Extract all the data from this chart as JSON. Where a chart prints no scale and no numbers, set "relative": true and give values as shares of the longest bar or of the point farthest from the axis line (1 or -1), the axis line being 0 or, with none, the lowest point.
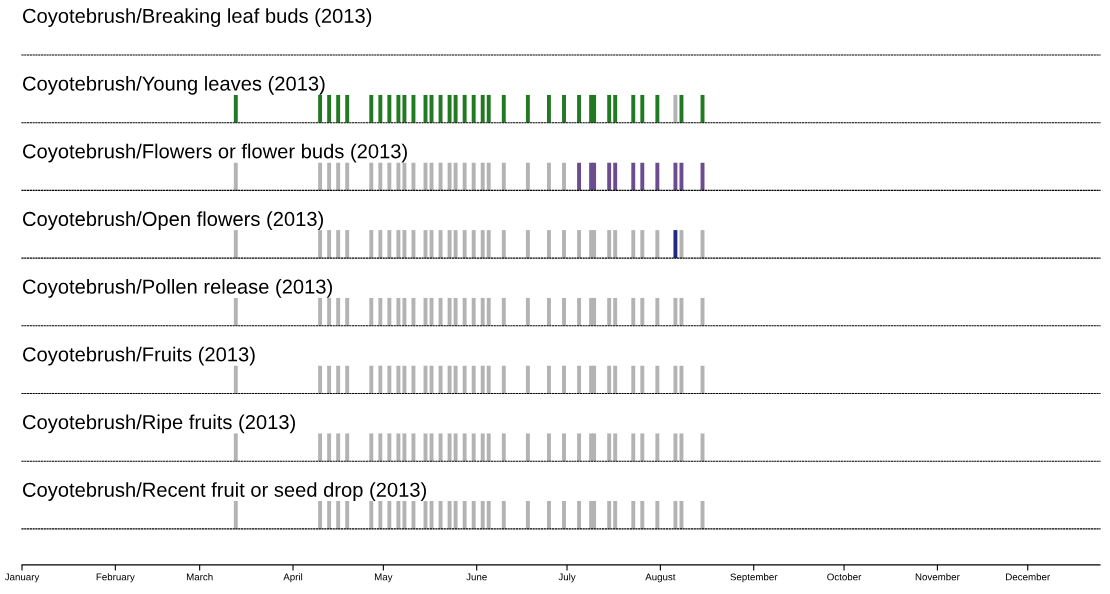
{
  "chart_data": [
    {
      "type": "other",
      "title": "Coyotebrush/Breaking leaf buds (2013)"
    },
    {
      "type": "bar",
      "relative": true,
      "title": "Coyotebrush/Young leaves (2013)",
      "xlim": [
        "2013-01-01",
        "2013-12-25"
      ],
      "tick_labels": false,
      "series": [
        {
          "color": "#217a21",
          "x": [
            "2013-03-13",
            "2013-04-10",
            "2013-04-13",
            "2013-04-16",
            "2013-04-19",
            "2013-04-27",
            "2013-04-30",
            "2013-05-03",
            "2013-05-06",
            "2013-05-08",
            "2013-05-11",
            "2013-05-15",
            "2013-05-17",
            "2013-05-20",
            "2013-05-23",
            "2013-05-25",
            "2013-05-28",
            "2013-05-31",
            "2013-06-03",
            "2013-06-05",
            "2013-06-10",
            "2013-06-18",
            "2013-06-25",
            "2013-06-30",
            "2013-07-05",
            "2013-07-09",
            "2013-07-10",
            "2013-07-15",
            "2013-07-17",
            "2013-07-23",
            "2013-07-26",
            "2013-07-31",
            "2013-08-08",
            "2013-08-15"
          ],
          "values": [
            1,
            1,
            1,
            1,
            1,
            1,
            1,
            1,
            1,
            1,
            1,
            1,
            1,
            1,
            1,
            1,
            1,
            1,
            1,
            1,
            1,
            1,
            1,
            1,
            1,
            1,
            1,
            1,
            1,
            1,
            1,
            1,
            1,
            1
          ]
        },
        {
          "color": "#b3b3b3",
          "x": [
            "2013-08-06"
          ],
          "values": [
            1
          ]
        }
      ]
    },
    {
      "type": "bar",
      "relative": true,
      "title": "Coyotebrush/Flowers or flower buds (2013)",
      "xlim": [
        "2013-01-01",
        "2013-12-25"
      ],
      "tick_labels": false,
      "series": [
        {
          "color": "#b3b3b3",
          "x": [
            "2013-03-13",
            "2013-04-10",
            "2013-04-13",
            "2013-04-16",
            "2013-04-19",
            "2013-04-27",
            "2013-04-30",
            "2013-05-03",
            "2013-05-06",
            "2013-05-08",
            "2013-05-11",
            "2013-05-15",
            "2013-05-17",
            "2013-05-20",
            "2013-05-23",
            "2013-05-25",
            "2013-05-28",
            "2013-05-31",
            "2013-06-03",
            "2013-06-05",
            "2013-06-10",
            "2013-06-18",
            "2013-06-25",
            "2013-06-30"
          ],
          "values": [
            1,
            1,
            1,
            1,
            1,
            1,
            1,
            1,
            1,
            1,
            1,
            1,
            1,
            1,
            1,
            1,
            1,
            1,
            1,
            1,
            1,
            1,
            1,
            1
          ]
        },
        {
          "color": "#6b4c8e",
          "x": [
            "2013-07-05",
            "2013-07-09",
            "2013-07-10",
            "2013-07-15",
            "2013-07-17",
            "2013-07-23",
            "2013-07-26",
            "2013-07-31",
            "2013-08-06",
            "2013-08-08",
            "2013-08-15"
          ],
          "values": [
            1,
            1,
            1,
            1,
            1,
            1,
            1,
            1,
            1,
            1,
            1
          ]
        }
      ]
    },
    {
      "type": "bar",
      "relative": true,
      "title": "Coyotebrush/Open flowers (2013)",
      "xlim": [
        "2013-01-01",
        "2013-12-25"
      ],
      "tick_labels": false,
      "series": [
        {
          "color": "#b3b3b3",
          "x": [
            "2013-03-13",
            "2013-04-10",
            "2013-04-13",
            "2013-04-16",
            "2013-04-19",
            "2013-04-27",
            "2013-04-30",
            "2013-05-03",
            "2013-05-06",
            "2013-05-08",
            "2013-05-11",
            "2013-05-15",
            "2013-05-17",
            "2013-05-20",
            "2013-05-23",
            "2013-05-25",
            "2013-05-28",
            "2013-05-31",
            "2013-06-03",
            "2013-06-05",
            "2013-06-10",
            "2013-06-18",
            "2013-06-25",
            "2013-06-30",
            "2013-07-05",
            "2013-07-09",
            "2013-07-10",
            "2013-07-15",
            "2013-07-17",
            "2013-07-23",
            "2013-07-26",
            "2013-07-31",
            "2013-08-08",
            "2013-08-15"
          ],
          "values": [
            1,
            1,
            1,
            1,
            1,
            1,
            1,
            1,
            1,
            1,
            1,
            1,
            1,
            1,
            1,
            1,
            1,
            1,
            1,
            1,
            1,
            1,
            1,
            1,
            1,
            1,
            1,
            1,
            1,
            1,
            1,
            1,
            1,
            1
          ]
        },
        {
          "color": "#1f2a80",
          "x": [
            "2013-08-06"
          ],
          "values": [
            1
          ]
        }
      ]
    },
    {
      "type": "bar",
      "relative": true,
      "title": "Coyotebrush/Pollen release (2013)",
      "xlim": [
        "2013-01-01",
        "2013-12-25"
      ],
      "tick_labels": false,
      "series": [
        {
          "color": "#b3b3b3",
          "x": [
            "2013-03-13",
            "2013-04-10",
            "2013-04-13",
            "2013-04-16",
            "2013-04-19",
            "2013-04-27",
            "2013-04-30",
            "2013-05-03",
            "2013-05-06",
            "2013-05-08",
            "2013-05-11",
            "2013-05-15",
            "2013-05-17",
            "2013-05-20",
            "2013-05-23",
            "2013-05-25",
            "2013-05-28",
            "2013-05-31",
            "2013-06-03",
            "2013-06-05",
            "2013-06-10",
            "2013-06-18",
            "2013-06-25",
            "2013-06-30",
            "2013-07-05",
            "2013-07-09",
            "2013-07-10",
            "2013-07-15",
            "2013-07-17",
            "2013-07-23",
            "2013-07-26",
            "2013-07-31",
            "2013-08-06",
            "2013-08-08",
            "2013-08-15"
          ],
          "values": [
            1,
            1,
            1,
            1,
            1,
            1,
            1,
            1,
            1,
            1,
            1,
            1,
            1,
            1,
            1,
            1,
            1,
            1,
            1,
            1,
            1,
            1,
            1,
            1,
            1,
            1,
            1,
            1,
            1,
            1,
            1,
            1,
            1,
            1,
            1
          ]
        }
      ]
    },
    {
      "type": "bar",
      "relative": true,
      "title": "Coyotebrush/Fruits (2013)",
      "xlim": [
        "2013-01-01",
        "2013-12-25"
      ],
      "tick_labels": false,
      "series": [
        {
          "color": "#b3b3b3",
          "x": [
            "2013-03-13",
            "2013-04-10",
            "2013-04-13",
            "2013-04-16",
            "2013-04-19",
            "2013-04-27",
            "2013-04-30",
            "2013-05-03",
            "2013-05-06",
            "2013-05-08",
            "2013-05-11",
            "2013-05-15",
            "2013-05-17",
            "2013-05-20",
            "2013-05-23",
            "2013-05-25",
            "2013-05-28",
            "2013-05-31",
            "2013-06-03",
            "2013-06-05",
            "2013-06-10",
            "2013-06-18",
            "2013-06-25",
            "2013-06-30",
            "2013-07-05",
            "2013-07-09",
            "2013-07-10",
            "2013-07-15",
            "2013-07-17",
            "2013-07-23",
            "2013-07-26",
            "2013-07-31",
            "2013-08-06",
            "2013-08-08",
            "2013-08-15"
          ],
          "values": [
            1,
            1,
            1,
            1,
            1,
            1,
            1,
            1,
            1,
            1,
            1,
            1,
            1,
            1,
            1,
            1,
            1,
            1,
            1,
            1,
            1,
            1,
            1,
            1,
            1,
            1,
            1,
            1,
            1,
            1,
            1,
            1,
            1,
            1,
            1
          ]
        }
      ]
    },
    {
      "type": "bar",
      "relative": true,
      "title": "Coyotebrush/Ripe fruits (2013)",
      "xlim": [
        "2013-01-01",
        "2013-12-25"
      ],
      "tick_labels": false,
      "series": [
        {
          "color": "#b3b3b3",
          "x": [
            "2013-03-13",
            "2013-04-10",
            "2013-04-13",
            "2013-04-16",
            "2013-04-19",
            "2013-04-27",
            "2013-04-30",
            "2013-05-03",
            "2013-05-06",
            "2013-05-08",
            "2013-05-11",
            "2013-05-15",
            "2013-05-17",
            "2013-05-20",
            "2013-05-23",
            "2013-05-25",
            "2013-05-28",
            "2013-05-31",
            "2013-06-03",
            "2013-06-05",
            "2013-06-10",
            "2013-06-18",
            "2013-06-25",
            "2013-06-30",
            "2013-07-05",
            "2013-07-09",
            "2013-07-10",
            "2013-07-15",
            "2013-07-17",
            "2013-07-23",
            "2013-07-26",
            "2013-07-31",
            "2013-08-06",
            "2013-08-08",
            "2013-08-15"
          ],
          "values": [
            1,
            1,
            1,
            1,
            1,
            1,
            1,
            1,
            1,
            1,
            1,
            1,
            1,
            1,
            1,
            1,
            1,
            1,
            1,
            1,
            1,
            1,
            1,
            1,
            1,
            1,
            1,
            1,
            1,
            1,
            1,
            1,
            1,
            1,
            1
          ]
        }
      ]
    },
    {
      "type": "bar",
      "relative": true,
      "title": "Coyotebrush/Recent fruit or seed drop (2013)",
      "xlim": [
        "2013-01-01",
        "2013-12-25"
      ],
      "tick_labels": "x",
      "xticks": [
        {
          "value": "2013-01-01",
          "label": "January"
        },
        {
          "value": "2013-02-01",
          "label": "February"
        },
        {
          "value": "2013-03-01",
          "label": "March"
        },
        {
          "value": "2013-04-01",
          "label": "April"
        },
        {
          "value": "2013-05-01",
          "label": "May"
        },
        {
          "value": "2013-06-01",
          "label": "June"
        },
        {
          "value": "2013-07-01",
          "label": "July"
        },
        {
          "value": "2013-08-01",
          "label": "August"
        },
        {
          "value": "2013-09-01",
          "label": "September"
        },
        {
          "value": "2013-10-01",
          "label": "October"
        },
        {
          "value": "2013-11-01",
          "label": "November"
        },
        {
          "value": "2013-12-01",
          "label": "December"
        }
      ],
      "series": [
        {
          "color": "#b3b3b3",
          "x": [
            "2013-03-13",
            "2013-04-10",
            "2013-04-13",
            "2013-04-16",
            "2013-04-19",
            "2013-04-27",
            "2013-04-30",
            "2013-05-03",
            "2013-05-06",
            "2013-05-08",
            "2013-05-11",
            "2013-05-15",
            "2013-05-17",
            "2013-05-20",
            "2013-05-23",
            "2013-05-25",
            "2013-05-28",
            "2013-05-31",
            "2013-06-03",
            "2013-06-05",
            "2013-06-10",
            "2013-06-18",
            "2013-06-25",
            "2013-06-30",
            "2013-07-05",
            "2013-07-09",
            "2013-07-10",
            "2013-07-15",
            "2013-07-17",
            "2013-07-23",
            "2013-07-26",
            "2013-07-31",
            "2013-08-06",
            "2013-08-08",
            "2013-08-15"
          ],
          "values": [
            1,
            1,
            1,
            1,
            1,
            1,
            1,
            1,
            1,
            1,
            1,
            1,
            1,
            1,
            1,
            1,
            1,
            1,
            1,
            1,
            1,
            1,
            1,
            1,
            1,
            1,
            1,
            1,
            1,
            1,
            1,
            1,
            1,
            1,
            1
          ]
        }
      ]
    }
  ]
}
